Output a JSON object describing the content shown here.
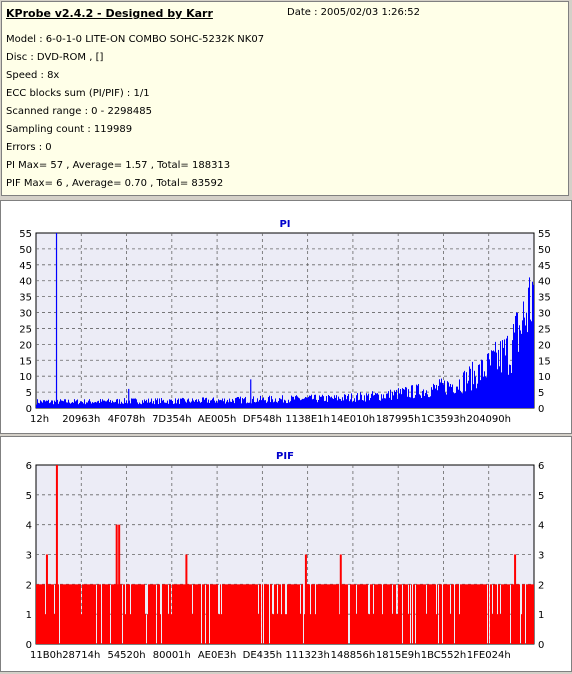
{
  "header": {
    "title": "KProbe v2.4.2 - Designed by Karr",
    "date": "Date : 2005/02/03 1:26:52",
    "lines": [
      "Model : 6-0-1-0 LITE-ON COMBO SOHC-5232K NK07",
      "Disc : DVD-ROM ,  []",
      "Speed : 8x",
      "ECC blocks sum (PI/PIF) : 1/1",
      "Scanned range : 0 - 2298485",
      "Sampling count : 119989",
      "Errors : 0",
      "PI Max= 57 , Average= 1.57 , Total= 188313",
      "PIF Max= 6 , Average= 0.70 , Total= 83592"
    ]
  },
  "chart_data": [
    {
      "type": "bar",
      "title": "PI",
      "color": "#0000ff",
      "ylim": [
        0,
        55
      ],
      "yticks": [
        0,
        5,
        10,
        15,
        20,
        25,
        30,
        35,
        40,
        45,
        50,
        55
      ],
      "xticks": [
        "12h",
        "20963h",
        "4F078h",
        "7D354h",
        "AE005h",
        "DF548h",
        "1138E1h",
        "14E010h",
        "187995h",
        "1C3593h",
        "204090h"
      ],
      "grid": true,
      "spikes": [
        {
          "x": 0.04,
          "value": 55
        },
        {
          "x": 0.185,
          "value": 6
        },
        {
          "x": 0.43,
          "value": 9
        }
      ],
      "envelope": [
        [
          0,
          2
        ],
        [
          0.1,
          2
        ],
        [
          0.2,
          2.2
        ],
        [
          0.3,
          2.2
        ],
        [
          0.4,
          2.5
        ],
        [
          0.5,
          2.8
        ],
        [
          0.6,
          3
        ],
        [
          0.7,
          4
        ],
        [
          0.8,
          6
        ],
        [
          0.85,
          8
        ],
        [
          0.9,
          12
        ],
        [
          0.95,
          18
        ],
        [
          0.98,
          28
        ],
        [
          1.0,
          38
        ]
      ]
    },
    {
      "type": "bar",
      "title": "PIF",
      "color": "#ff0000",
      "ylim": [
        0,
        6
      ],
      "yticks": [
        0,
        1,
        2,
        3,
        4,
        5,
        6
      ],
      "xticks": [
        "11B0h",
        "28714h",
        "54520h",
        "80001h",
        "AE0E3h",
        "DE435h",
        "111323h",
        "148856h",
        "1815E9h",
        "1BC552h",
        "1FE024h"
      ],
      "grid": true,
      "spikes": [
        {
          "x": 0.04,
          "value": 6
        },
        {
          "x": 0.02,
          "value": 3
        },
        {
          "x": 0.16,
          "value": 4
        },
        {
          "x": 0.165,
          "value": 4
        },
        {
          "x": 0.3,
          "value": 3
        },
        {
          "x": 0.54,
          "value": 3
        },
        {
          "x": 0.61,
          "value": 3
        },
        {
          "x": 0.96,
          "value": 3
        }
      ],
      "baseline": 2
    }
  ]
}
